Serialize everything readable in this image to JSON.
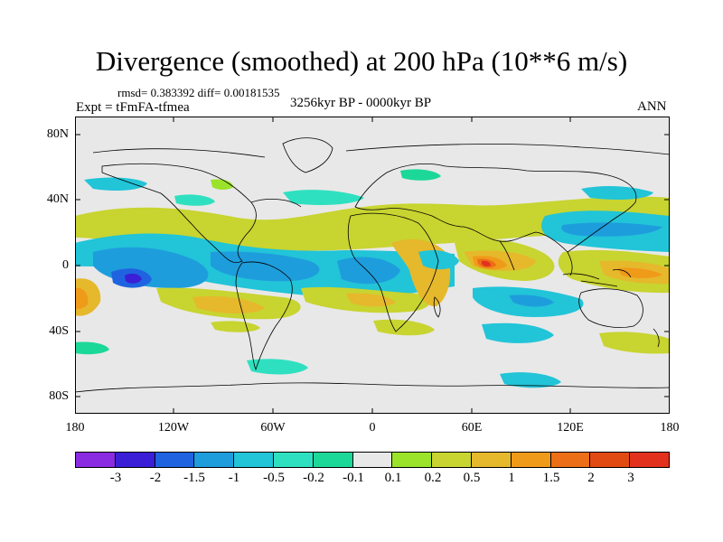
{
  "title": "Divergence (smoothed) at 200 hPa (10**6 m/s)",
  "stats": "rmsd= 0.383392 diff= 0.00181535",
  "experiment": "Expt = tFmFA-tfmea",
  "period": "3256kyr BP - 0000kyr BP",
  "season": "ANN",
  "lat_labels": [
    "80N",
    "40N",
    "0",
    "40S",
    "80S"
  ],
  "lon_labels": [
    "180",
    "120W",
    "60W",
    "0",
    "60E",
    "120E",
    "180"
  ],
  "colorbar": {
    "colors": [
      "#8a2be2",
      "#3a1fd6",
      "#1f63e0",
      "#1e9ddc",
      "#22c4d8",
      "#2fe0c0",
      "#1cd898",
      "#e8e8e8",
      "#9be22b",
      "#c8d430",
      "#e6b82c",
      "#f09a1a",
      "#ec6e16",
      "#e24a14",
      "#e2321e"
    ],
    "labels": [
      "-3",
      "-2",
      "-1.5",
      "-1",
      "-0.5",
      "-0.2",
      "-0.1",
      "0.1",
      "0.2",
      "0.5",
      "1",
      "1.5",
      "2",
      "3"
    ]
  }
}
